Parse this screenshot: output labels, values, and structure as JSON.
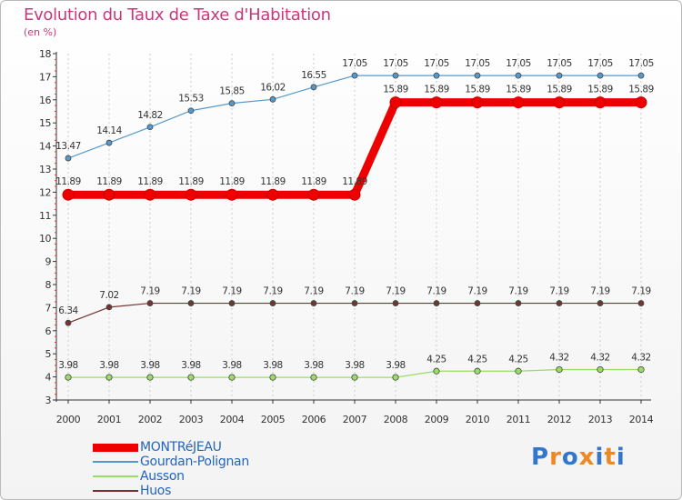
{
  "title": "Evolution du Taux de Taxe d'Habitation",
  "unit": "(en %)",
  "brand": "Proxiti",
  "colors": {
    "title": "#c9387c",
    "legend_text": "#2266bb",
    "axis": "#333333",
    "grid": "#cccccc",
    "tick_red": "#ee3333"
  },
  "chart_data": {
    "type": "line",
    "title": "Evolution du Taux de Taxe d'Habitation",
    "ylabel": "(en %)",
    "xlabel": "",
    "ylim": [
      3,
      18
    ],
    "yticks": [
      "3",
      "4",
      "5",
      "6",
      "7",
      "8",
      "9",
      "10",
      "11",
      "12",
      "13",
      "14",
      "15",
      "16",
      "17",
      "18"
    ],
    "categories": [
      "2000",
      "2001",
      "2002",
      "2003",
      "2004",
      "2005",
      "2006",
      "2007",
      "2008",
      "2009",
      "2010",
      "2011",
      "2012",
      "2013",
      "2014"
    ],
    "legend_position": "bottom-left",
    "series": [
      {
        "name": "MONTRéJEAU",
        "color": "#ee0000",
        "values": [
          11.89,
          11.89,
          11.89,
          11.89,
          11.89,
          11.89,
          11.89,
          11.89,
          15.89,
          15.89,
          15.89,
          15.89,
          15.89,
          15.89,
          15.89
        ],
        "labels": [
          "11.89",
          "11.89",
          "11.89",
          "11.89",
          "11.89",
          "11.89",
          "11.89",
          "11.89",
          "15.89",
          "15.89",
          "15.89",
          "15.89",
          "15.89",
          "15.89",
          "15.89"
        ]
      },
      {
        "name": "Gourdan-Polignan",
        "color": "#5599cc",
        "values": [
          13.47,
          14.14,
          14.82,
          15.53,
          15.85,
          16.02,
          16.55,
          17.05,
          17.05,
          17.05,
          17.05,
          17.05,
          17.05,
          17.05,
          17.05
        ],
        "labels": [
          "13.47",
          "14.14",
          "14.82",
          "15.53",
          "15.85",
          "16.02",
          "16.55",
          "17.05",
          "17.05",
          "17.05",
          "17.05",
          "17.05",
          "17.05",
          "17.05",
          "17.05"
        ]
      },
      {
        "name": "Ausson",
        "color": "#99dd66",
        "values": [
          3.98,
          3.98,
          3.98,
          3.98,
          3.98,
          3.98,
          3.98,
          3.98,
          3.98,
          4.25,
          4.25,
          4.25,
          4.32,
          4.32,
          4.32
        ],
        "labels": [
          "3.98",
          "3.98",
          "3.98",
          "3.98",
          "3.98",
          "3.98",
          "3.98",
          "3.98",
          "3.98",
          "4.25",
          "4.25",
          "4.25",
          "4.32",
          "4.32",
          "4.32"
        ]
      },
      {
        "name": "Huos",
        "color": "#773333",
        "values": [
          6.34,
          7.02,
          7.19,
          7.19,
          7.19,
          7.19,
          7.19,
          7.19,
          7.19,
          7.19,
          7.19,
          7.19,
          7.19,
          7.19,
          7.19
        ],
        "labels": [
          "6.34",
          "7.02",
          "7.19",
          "7.19",
          "7.19",
          "7.19",
          "7.19",
          "7.19",
          "7.19",
          "7.19",
          "7.19",
          "7.19",
          "7.19",
          "7.19",
          "7.19"
        ]
      }
    ]
  }
}
